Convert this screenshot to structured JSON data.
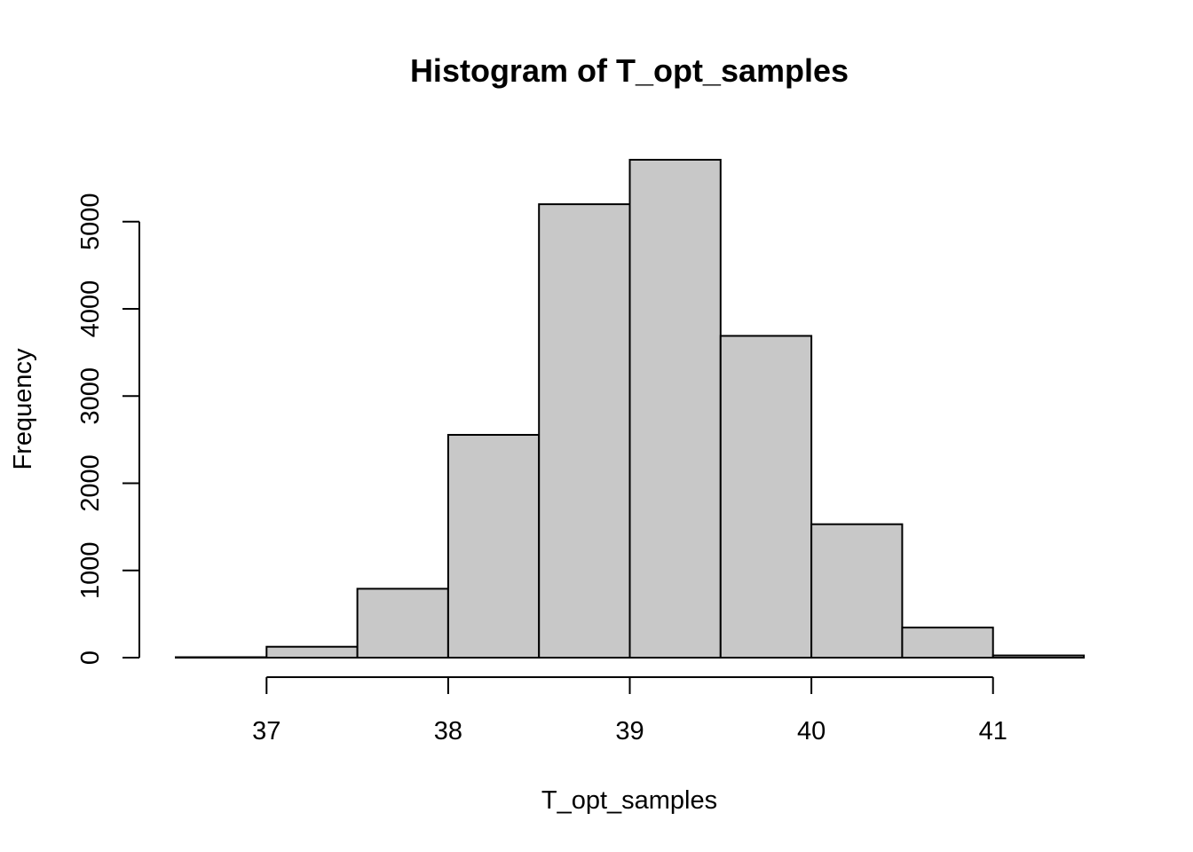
{
  "chart_data": {
    "type": "histogram",
    "title": "Histogram of T_opt_samples",
    "xlabel": "T_opt_samples",
    "ylabel": "Frequency",
    "bin_edges": [
      36.5,
      37.0,
      37.5,
      38.0,
      38.5,
      39.0,
      39.5,
      40.0,
      40.5,
      41.0,
      41.5
    ],
    "values": [
      5,
      125,
      790,
      2555,
      5200,
      5710,
      3690,
      1530,
      345,
      25
    ],
    "xlim": [
      36.5,
      41.5
    ],
    "ylim": [
      0,
      5710
    ],
    "x_ticks": [
      37,
      38,
      39,
      40,
      41
    ],
    "x_tick_labels": [
      "37",
      "38",
      "39",
      "40",
      "41"
    ],
    "y_ticks": [
      0,
      1000,
      2000,
      3000,
      4000,
      5000
    ],
    "y_tick_labels": [
      "0",
      "1000",
      "2000",
      "3000",
      "4000",
      "5000"
    ],
    "bar_color": "#c8c8c8",
    "grid": false,
    "legend": "none"
  }
}
